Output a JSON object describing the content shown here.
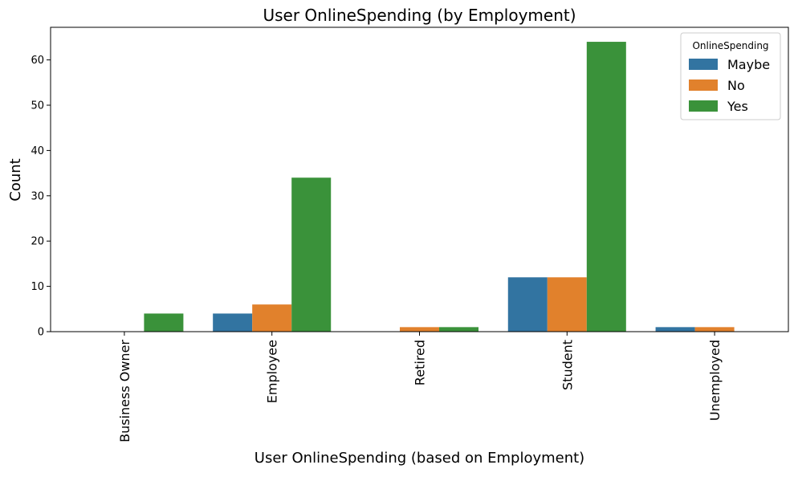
{
  "chart_data": {
    "type": "bar",
    "title": "User OnlineSpending (by Employment)",
    "xlabel": "User OnlineSpending (based on Employment)",
    "ylabel": "Count",
    "categories": [
      "Business Owner",
      "Employee",
      "Retired",
      "Student",
      "Unemployed"
    ],
    "series": [
      {
        "name": "Maybe",
        "color": "#3274a1",
        "values": [
          0,
          4,
          0,
          12,
          1
        ]
      },
      {
        "name": "No",
        "color": "#e1812c",
        "values": [
          0,
          6,
          1,
          12,
          1
        ]
      },
      {
        "name": "Yes",
        "color": "#3a923a",
        "values": [
          4,
          34,
          1,
          64,
          0
        ]
      }
    ],
    "ylim": [
      0,
      67.2
    ],
    "yticks": [
      0,
      10,
      20,
      30,
      40,
      50,
      60
    ],
    "grid": false,
    "legend": {
      "title": "OnlineSpending",
      "position": "top-right"
    },
    "x_tick_rotation": "vertical"
  }
}
